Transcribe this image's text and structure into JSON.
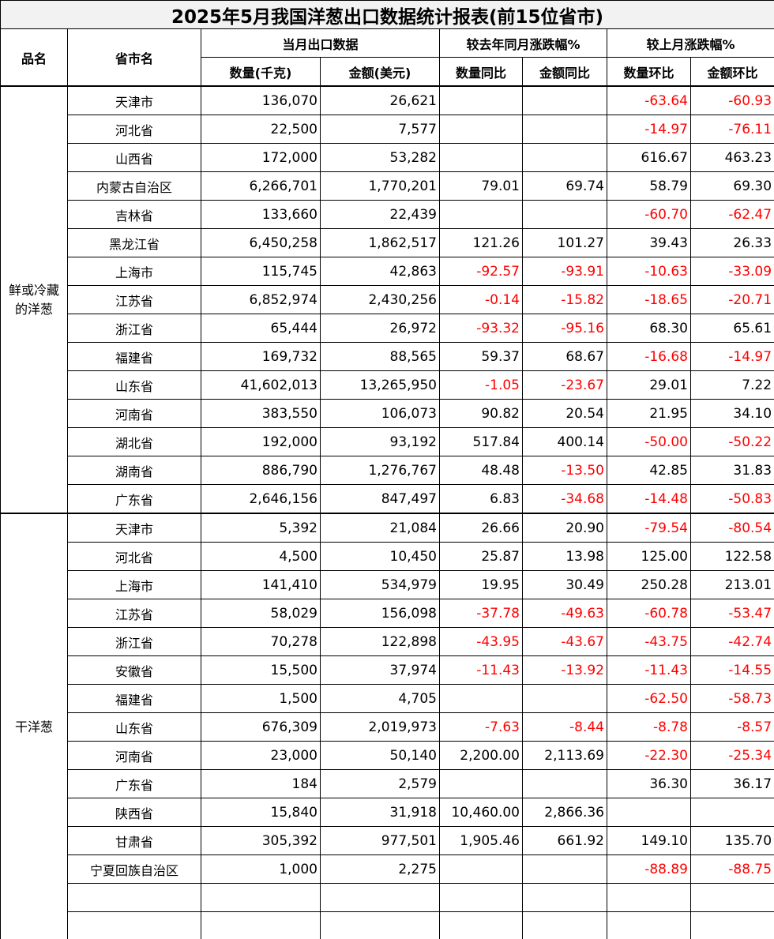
{
  "title": "2025年5月我国洋葱出口数据统计报表(前15位省市)",
  "headers": {
    "product": "品名",
    "province": "省市名",
    "monthly": "当月出口数据",
    "yoy": "较去年同月涨跌幅%",
    "mom": "较上月涨跌幅%",
    "qty": "数量(千克)",
    "amt": "金额(美元)",
    "qty_yoy": "数量同比",
    "amt_yoy": "金额同比",
    "qty_mom": "数量环比",
    "amt_mom": "金额环比"
  },
  "colors": {
    "negative": "#ff0000",
    "title_bg": "#f2f2f2"
  },
  "groups": [
    {
      "product": "鲜或冷藏的洋葱",
      "rows": [
        [
          "天津市",
          "136,070",
          "26,621",
          "",
          "",
          "-63.64",
          "-60.93"
        ],
        [
          "河北省",
          "22,500",
          "7,577",
          "",
          "",
          "-14.97",
          "-76.11"
        ],
        [
          "山西省",
          "172,000",
          "53,282",
          "",
          "",
          "616.67",
          "463.23"
        ],
        [
          "内蒙古自治区",
          "6,266,701",
          "1,770,201",
          "79.01",
          "69.74",
          "58.79",
          "69.30"
        ],
        [
          "吉林省",
          "133,660",
          "22,439",
          "",
          "",
          "-60.70",
          "-62.47"
        ],
        [
          "黑龙江省",
          "6,450,258",
          "1,862,517",
          "121.26",
          "101.27",
          "39.43",
          "26.33"
        ],
        [
          "上海市",
          "115,745",
          "42,863",
          "-92.57",
          "-93.91",
          "-10.63",
          "-33.09"
        ],
        [
          "江苏省",
          "6,852,974",
          "2,430,256",
          "-0.14",
          "-15.82",
          "-18.65",
          "-20.71"
        ],
        [
          "浙江省",
          "65,444",
          "26,972",
          "-93.32",
          "-95.16",
          "68.30",
          "65.61"
        ],
        [
          "福建省",
          "169,732",
          "88,565",
          "59.37",
          "68.67",
          "-16.68",
          "-14.97"
        ],
        [
          "山东省",
          "41,602,013",
          "13,265,950",
          "-1.05",
          "-23.67",
          "29.01",
          "7.22"
        ],
        [
          "河南省",
          "383,550",
          "106,073",
          "90.82",
          "20.54",
          "21.95",
          "34.10"
        ],
        [
          "湖北省",
          "192,000",
          "93,192",
          "517.84",
          "400.14",
          "-50.00",
          "-50.22"
        ],
        [
          "湖南省",
          "886,790",
          "1,276,767",
          "48.48",
          "-13.50",
          "42.85",
          "31.83"
        ],
        [
          "广东省",
          "2,646,156",
          "847,497",
          "6.83",
          "-34.68",
          "-14.48",
          "-50.83"
        ]
      ]
    },
    {
      "product": "干洋葱",
      "rows": [
        [
          "天津市",
          "5,392",
          "21,084",
          "26.66",
          "20.90",
          "-79.54",
          "-80.54"
        ],
        [
          "河北省",
          "4,500",
          "10,450",
          "25.87",
          "13.98",
          "125.00",
          "122.58"
        ],
        [
          "上海市",
          "141,410",
          "534,979",
          "19.95",
          "30.49",
          "250.28",
          "213.01"
        ],
        [
          "江苏省",
          "58,029",
          "156,098",
          "-37.78",
          "-49.63",
          "-60.78",
          "-53.47"
        ],
        [
          "浙江省",
          "70,278",
          "122,898",
          "-43.95",
          "-43.67",
          "-43.75",
          "-42.74"
        ],
        [
          "安徽省",
          "15,500",
          "37,974",
          "-11.43",
          "-13.92",
          "-11.43",
          "-14.55"
        ],
        [
          "福建省",
          "1,500",
          "4,705",
          "",
          "",
          "-62.50",
          "-58.73"
        ],
        [
          "山东省",
          "676,309",
          "2,019,973",
          "-7.63",
          "-8.44",
          "-8.78",
          "-8.57"
        ],
        [
          "河南省",
          "23,000",
          "50,140",
          "2,200.00",
          "2,113.69",
          "-22.30",
          "-25.34"
        ],
        [
          "广东省",
          "184",
          "2,579",
          "",
          "",
          "36.30",
          "36.17"
        ],
        [
          "陕西省",
          "15,840",
          "31,918",
          "10,460.00",
          "2,866.36",
          "",
          ""
        ],
        [
          "甘肃省",
          "305,392",
          "977,501",
          "1,905.46",
          "661.92",
          "149.10",
          "135.70"
        ],
        [
          "宁夏回族自治区",
          "1,000",
          "2,275",
          "",
          "",
          "-88.89",
          "-88.75"
        ],
        [
          "",
          "",
          "",
          "",
          "",
          "",
          ""
        ],
        [
          "",
          "",
          "",
          "",
          "",
          "",
          ""
        ]
      ]
    }
  ]
}
